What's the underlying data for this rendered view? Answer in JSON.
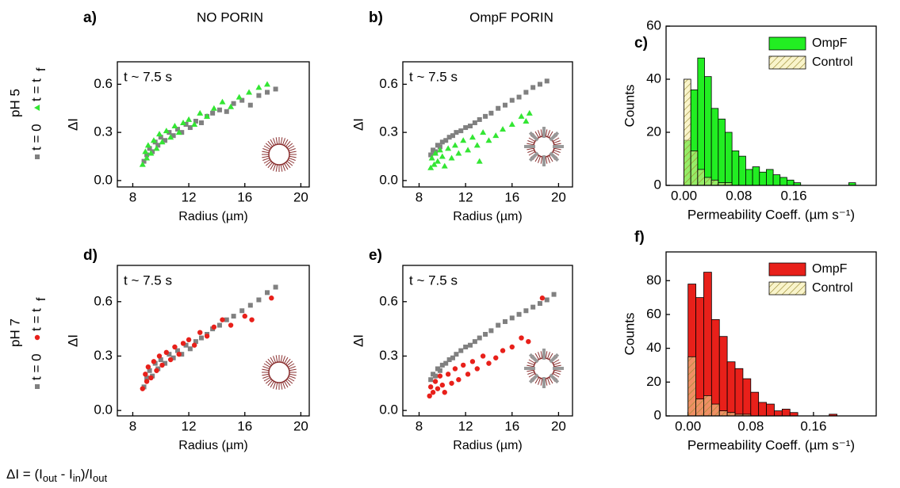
{
  "chart_data": [
    {
      "type": "scatter",
      "panel": "a)",
      "header": "NO PORIN",
      "annotation": "t ~ 7.5 s",
      "x_label": "Radius (µm)",
      "y_label": "ΔI",
      "xlim": [
        6.9,
        20.6
      ],
      "ylim": [
        -0.04,
        0.74
      ],
      "xticks": [
        8,
        12,
        16,
        20
      ],
      "yticks": [
        {
          "value": 0,
          "label": "0.0"
        },
        0.3,
        0.6
      ],
      "series": [
        {
          "name": "t = 0",
          "color": "#808080",
          "marker": "square",
          "x": [
            8.8,
            9.0,
            9.2,
            9.4,
            9.6,
            9.8,
            10.0,
            10.3,
            10.6,
            10.9,
            11.2,
            11.5,
            11.8,
            12.1,
            12.5,
            12.9,
            13.3,
            13.7,
            14.2,
            14.7,
            15.2,
            15.8,
            16.4,
            17.0,
            17.6,
            18.2
          ],
          "values": [
            0.12,
            0.16,
            0.2,
            0.18,
            0.24,
            0.22,
            0.27,
            0.25,
            0.3,
            0.28,
            0.32,
            0.3,
            0.35,
            0.33,
            0.37,
            0.36,
            0.4,
            0.42,
            0.44,
            0.43,
            0.48,
            0.5,
            0.47,
            0.53,
            0.55,
            0.57
          ]
        },
        {
          "name": "t = tf",
          "color": "#33e633",
          "marker": "triangle",
          "x": [
            8.7,
            8.9,
            9.0,
            9.1,
            9.3,
            9.5,
            9.7,
            9.9,
            10.1,
            10.4,
            10.7,
            11.0,
            11.3,
            11.6,
            12.0,
            12.4,
            12.8,
            13.3,
            13.8,
            14.4,
            15.0,
            15.6,
            16.3,
            17.0,
            17.6
          ],
          "values": [
            0.1,
            0.18,
            0.14,
            0.22,
            0.17,
            0.25,
            0.2,
            0.29,
            0.24,
            0.31,
            0.27,
            0.34,
            0.3,
            0.36,
            0.38,
            0.35,
            0.42,
            0.4,
            0.45,
            0.49,
            0.46,
            0.52,
            0.55,
            0.58,
            0.6
          ]
        }
      ]
    },
    {
      "type": "scatter",
      "panel": "b)",
      "header": "OmpF PORIN",
      "annotation": "t ~ 7.5 s",
      "x_label": "Radius (µm)",
      "y_label": "ΔI",
      "xlim": [
        6.6,
        21.2
      ],
      "ylim": [
        -0.04,
        0.74
      ],
      "xticks": [
        8,
        12,
        16,
        20
      ],
      "yticks": [
        {
          "value": 0,
          "label": "0.0"
        },
        0.3,
        0.6
      ],
      "series": [
        {
          "name": "t = 0",
          "color": "#808080",
          "marker": "square",
          "x": [
            9.0,
            9.2,
            9.4,
            9.6,
            9.8,
            10.0,
            10.3,
            10.6,
            10.9,
            11.2,
            11.6,
            12.0,
            12.4,
            12.8,
            13.2,
            13.7,
            14.2,
            14.8,
            15.4,
            16.0,
            16.6,
            17.2,
            17.8,
            18.4,
            19.0
          ],
          "values": [
            0.16,
            0.19,
            0.18,
            0.22,
            0.21,
            0.24,
            0.25,
            0.27,
            0.28,
            0.3,
            0.31,
            0.33,
            0.34,
            0.36,
            0.38,
            0.4,
            0.42,
            0.45,
            0.47,
            0.5,
            0.52,
            0.55,
            0.58,
            0.6,
            0.62
          ]
        },
        {
          "name": "t = tf",
          "color": "#33e633",
          "marker": "triangle",
          "x": [
            9.0,
            9.1,
            9.3,
            9.4,
            9.6,
            9.8,
            10.0,
            10.2,
            10.5,
            10.8,
            11.1,
            11.4,
            11.8,
            12.2,
            12.6,
            13.0,
            13.5,
            14.0,
            14.6,
            15.2,
            16.0,
            16.8,
            17.2,
            17.5,
            13.2
          ],
          "values": [
            0.08,
            0.14,
            0.1,
            0.17,
            0.12,
            0.19,
            0.15,
            0.09,
            0.2,
            0.14,
            0.22,
            0.17,
            0.25,
            0.19,
            0.27,
            0.22,
            0.3,
            0.25,
            0.28,
            0.32,
            0.35,
            0.4,
            0.37,
            0.42,
            0.12
          ]
        }
      ]
    },
    {
      "type": "histogram",
      "panel": "c)",
      "x_label": "Permeability Coeff. (µm s⁻¹)",
      "y_label": "Counts",
      "xlim": [
        -0.026,
        0.28
      ],
      "ylim": [
        0,
        60
      ],
      "xticks": [
        {
          "value": 0,
          "label": "0.00"
        },
        0.08,
        0.16
      ],
      "yticks": [
        0,
        20,
        40,
        60
      ],
      "legend": "upper right",
      "bins": [
        0,
        0.01,
        0.02,
        0.03,
        0.04,
        0.05,
        0.06,
        0.07,
        0.08,
        0.09,
        0.1,
        0.11,
        0.12,
        0.13,
        0.14,
        0.15,
        0.16,
        0.17,
        0.18,
        0.19,
        0.2,
        0.21,
        0.22,
        0.23,
        0.24,
        0.25
      ],
      "series": [
        {
          "name": "OmpF",
          "color": "#22ee22",
          "values": [
            17,
            36,
            48,
            41,
            29,
            25,
            20,
            13,
            11,
            6,
            7,
            5,
            6,
            4,
            3,
            2,
            1,
            0,
            0,
            0,
            0,
            0,
            0,
            0,
            1
          ]
        },
        {
          "name": "Control",
          "color": "#f3eaa0",
          "hatch": true,
          "values": [
            40,
            13,
            6,
            3,
            2,
            1,
            1,
            0,
            0,
            0,
            0,
            0,
            0,
            0,
            0,
            0,
            0,
            0,
            0,
            0,
            0,
            0,
            0,
            0,
            0
          ]
        }
      ]
    },
    {
      "type": "scatter",
      "panel": "d)",
      "annotation": "t ~ 7.5 s",
      "x_label": "Radius (µm)",
      "y_label": "ΔI",
      "xlim": [
        6.9,
        20.6
      ],
      "ylim": [
        -0.03,
        0.8
      ],
      "xticks": [
        8,
        12,
        16,
        20
      ],
      "yticks": [
        {
          "value": 0,
          "label": "0.0"
        },
        0.3,
        0.6
      ],
      "series": [
        {
          "name": "t = 0",
          "color": "#808080",
          "marker": "square",
          "x": [
            8.8,
            9.0,
            9.2,
            9.4,
            9.6,
            9.8,
            10.0,
            10.3,
            10.6,
            10.9,
            11.2,
            11.5,
            11.8,
            12.1,
            12.5,
            12.9,
            13.3,
            13.7,
            14.2,
            14.7,
            15.2,
            15.8,
            16.4,
            17.0,
            17.6,
            18.2
          ],
          "values": [
            0.13,
            0.18,
            0.22,
            0.19,
            0.26,
            0.23,
            0.28,
            0.26,
            0.31,
            0.29,
            0.33,
            0.31,
            0.36,
            0.34,
            0.38,
            0.4,
            0.42,
            0.45,
            0.47,
            0.5,
            0.52,
            0.55,
            0.58,
            0.61,
            0.65,
            0.68
          ]
        },
        {
          "name": "t = tf",
          "color": "#e8201a",
          "marker": "circle",
          "x": [
            8.7,
            8.9,
            9.0,
            9.1,
            9.3,
            9.5,
            9.7,
            9.9,
            10.1,
            10.4,
            10.7,
            11.0,
            11.3,
            11.6,
            12.0,
            12.4,
            12.8,
            13.3,
            13.8,
            14.4,
            15.0,
            16.0,
            16.5,
            17.9
          ],
          "values": [
            0.12,
            0.2,
            0.16,
            0.24,
            0.18,
            0.27,
            0.22,
            0.3,
            0.25,
            0.32,
            0.28,
            0.35,
            0.31,
            0.37,
            0.39,
            0.36,
            0.43,
            0.41,
            0.46,
            0.5,
            0.47,
            0.52,
            0.5,
            0.62
          ]
        }
      ]
    },
    {
      "type": "scatter",
      "panel": "e)",
      "annotation": "t ~ 7.5 s",
      "x_label": "Radius (µm)",
      "y_label": "ΔI",
      "xlim": [
        6.6,
        21.2
      ],
      "ylim": [
        -0.03,
        0.8
      ],
      "xticks": [
        8,
        12,
        16,
        20
      ],
      "yticks": [
        {
          "value": 0,
          "label": "0.0"
        },
        0.3,
        0.6
      ],
      "series": [
        {
          "name": "t = 0",
          "color": "#808080",
          "marker": "square",
          "x": [
            9.0,
            9.2,
            9.4,
            9.6,
            9.8,
            10.0,
            10.3,
            10.6,
            10.9,
            11.2,
            11.6,
            12.0,
            12.4,
            12.8,
            13.2,
            13.7,
            14.2,
            14.8,
            15.4,
            16.0,
            16.6,
            17.2,
            17.8,
            18.4,
            19.0,
            19.6
          ],
          "values": [
            0.17,
            0.2,
            0.19,
            0.23,
            0.22,
            0.25,
            0.26,
            0.28,
            0.29,
            0.31,
            0.33,
            0.35,
            0.36,
            0.38,
            0.4,
            0.42,
            0.44,
            0.47,
            0.49,
            0.51,
            0.53,
            0.55,
            0.57,
            0.59,
            0.61,
            0.64
          ]
        },
        {
          "name": "t = tf",
          "color": "#e8201a",
          "marker": "circle",
          "x": [
            8.9,
            9.0,
            9.2,
            9.4,
            9.6,
            9.8,
            10.0,
            10.2,
            10.5,
            10.8,
            11.1,
            11.4,
            11.8,
            12.2,
            12.6,
            13.0,
            13.5,
            14.0,
            14.6,
            15.2,
            16.0,
            16.8,
            17.4,
            18.6
          ],
          "values": [
            0.08,
            0.13,
            0.1,
            0.16,
            0.12,
            0.19,
            0.14,
            0.1,
            0.2,
            0.15,
            0.23,
            0.17,
            0.25,
            0.2,
            0.27,
            0.23,
            0.3,
            0.26,
            0.29,
            0.33,
            0.35,
            0.4,
            0.38,
            0.62
          ]
        }
      ]
    },
    {
      "type": "histogram",
      "panel": "f)",
      "x_label": "Permeability Coeff. (µm s⁻¹)",
      "y_label": "Counts",
      "xlim": [
        -0.028,
        0.24
      ],
      "ylim": [
        0,
        97
      ],
      "xticks": [
        {
          "value": 0,
          "label": "0.00"
        },
        0.08,
        0.16
      ],
      "yticks": [
        0,
        20,
        40,
        60,
        80
      ],
      "legend": "upper right",
      "bins": [
        0,
        0.01,
        0.02,
        0.03,
        0.04,
        0.05,
        0.06,
        0.07,
        0.08,
        0.09,
        0.1,
        0.11,
        0.12,
        0.13,
        0.14,
        0.15,
        0.16,
        0.17,
        0.18,
        0.19,
        0.2
      ],
      "series": [
        {
          "name": "OmpF",
          "color": "#e8201a",
          "values": [
            78,
            70,
            85,
            57,
            47,
            32,
            28,
            22,
            14,
            8,
            7,
            3,
            4,
            2,
            0,
            0,
            0,
            0,
            1,
            0
          ]
        },
        {
          "name": "Control",
          "color": "#f3eaa0",
          "hatch": true,
          "values": [
            35,
            10,
            12,
            7,
            3,
            2,
            1,
            1,
            0,
            0,
            0,
            0,
            0,
            0,
            0,
            0,
            0,
            0,
            0,
            0
          ]
        }
      ]
    }
  ],
  "rows": [
    {
      "label": "pH 5",
      "entries": [
        "t = 0",
        "t = t"
      ],
      "subscript": "f"
    },
    {
      "label": "pH 7",
      "entries": [
        "t = 0",
        "t = t"
      ],
      "subscript": "f"
    }
  ],
  "formula": [
    "ΔI = (I",
    "out",
    " - I",
    "in",
    ")/I",
    "out"
  ]
}
